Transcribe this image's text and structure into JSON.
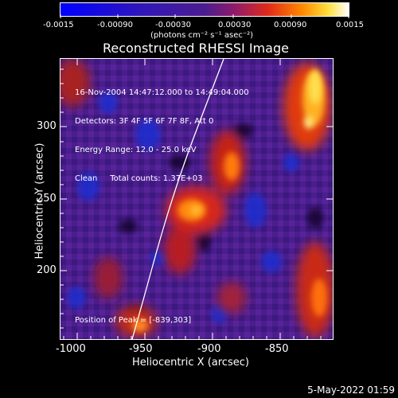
{
  "colorbar": {
    "ticks": [
      "-0.0015",
      "-0.00090",
      "-0.00030",
      "0.00030",
      "0.00090",
      "0.0015"
    ],
    "units": "(photons cm⁻² s⁻¹ asec⁻²)"
  },
  "title": "Reconstructed RHESSI Image",
  "info": {
    "time": "16-Nov-2004 14:47:12.000 to 14:49:04.000",
    "detectors": "Detectors: 3F 4F 5F 6F 7F 8F, Att 0",
    "energy": "Energy Range: 12.0 - 25.0 keV",
    "clean": "Clean     Total counts: 1.37E+03",
    "peak": "Position of Peak = [-839,303]"
  },
  "axes": {
    "xlabel": "Heliocentric X (arcsec)",
    "ylabel": "Heliocentric Y (arcsec)",
    "xticks": [
      "-1000",
      "-950",
      "-900",
      "-850"
    ],
    "yticks": [
      "200",
      "250",
      "300"
    ]
  },
  "date_stamp": "5-May-2022 01:59",
  "colors": {
    "low": "#0000ff",
    "mid": "#4b1c8f",
    "high": "#ffffff"
  }
}
